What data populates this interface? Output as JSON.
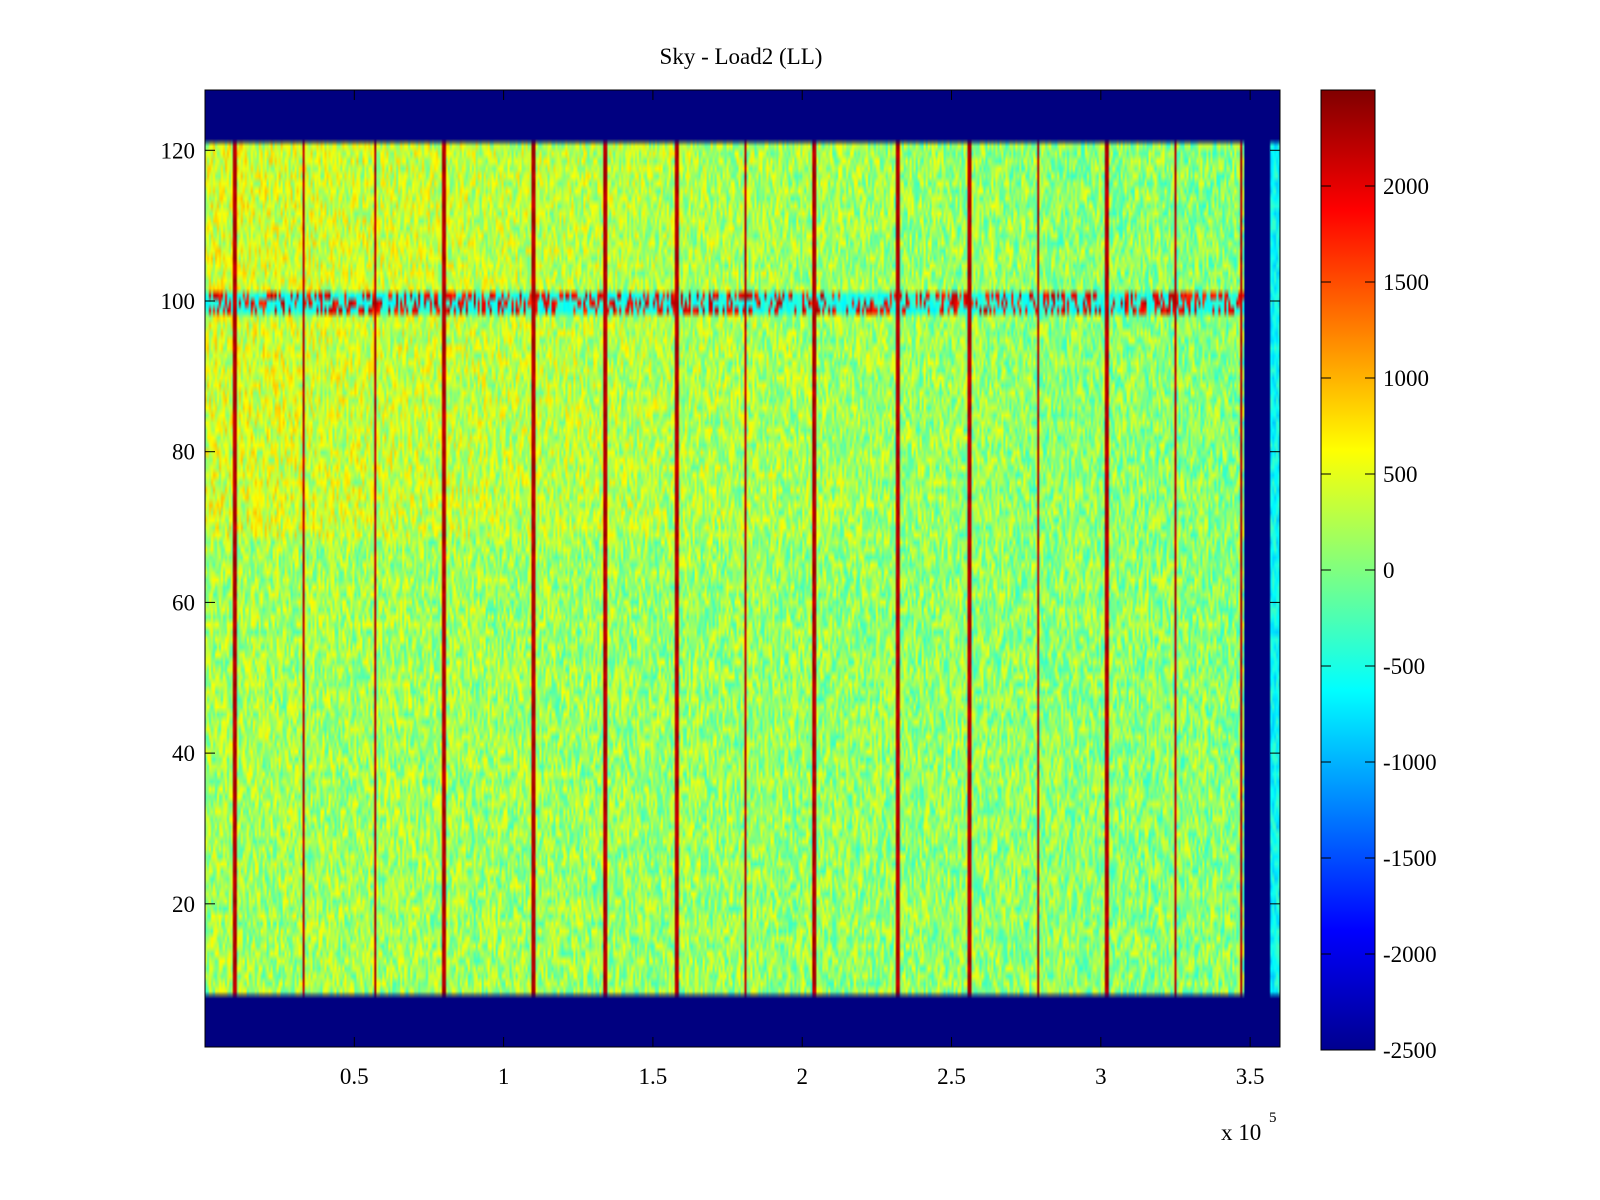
{
  "chart_data": {
    "type": "heatmap",
    "title": "Sky - Load2 (LL)",
    "xlabel": "",
    "ylabel": "",
    "x_multiplier_label": "x 10",
    "x_multiplier_exponent": "5",
    "xlim": [
      0,
      360000
    ],
    "ylim": [
      1,
      128
    ],
    "x_ticks": [
      {
        "value": 50000,
        "label": "0.5"
      },
      {
        "value": 100000,
        "label": "1"
      },
      {
        "value": 150000,
        "label": "1.5"
      },
      {
        "value": 200000,
        "label": "2"
      },
      {
        "value": 250000,
        "label": "2.5"
      },
      {
        "value": 300000,
        "label": "3"
      },
      {
        "value": 350000,
        "label": "3.5"
      }
    ],
    "y_ticks": [
      {
        "value": 20,
        "label": "20"
      },
      {
        "value": 40,
        "label": "40"
      },
      {
        "value": 60,
        "label": "60"
      },
      {
        "value": 80,
        "label": "80"
      },
      {
        "value": 100,
        "label": "100"
      },
      {
        "value": 120,
        "label": "120"
      }
    ],
    "colorbar": {
      "colormap": "jet",
      "clim": [
        -2500,
        2500
      ],
      "ticks": [
        {
          "value": 2000,
          "label": "2000"
        },
        {
          "value": 1500,
          "label": "1500"
        },
        {
          "value": 1000,
          "label": "1000"
        },
        {
          "value": 500,
          "label": "500"
        },
        {
          "value": 0,
          "label": "0"
        },
        {
          "value": -500,
          "label": "-500"
        },
        {
          "value": -1000,
          "label": "-1000"
        },
        {
          "value": -1500,
          "label": "-1500"
        },
        {
          "value": -2000,
          "label": "-2000"
        },
        {
          "value": -2500,
          "label": "-2500"
        }
      ]
    },
    "background_value": -2500,
    "data_row_bands": [
      [
        8,
        68
      ],
      [
        69,
        121
      ]
    ],
    "data_end_x": 348000,
    "gap_start_x": 349000,
    "gap_end_x": 357000,
    "base_value": 150,
    "top_band_extra": 250,
    "noise_amplitude": 500,
    "spike_x": [
      10000,
      33000,
      57000,
      80000,
      110000,
      134000,
      158000,
      181000,
      204000,
      232000,
      256000,
      279000,
      302000,
      325000,
      347000
    ],
    "spike_value": 2400,
    "hot_row": 100,
    "hot_row_value": 1600,
    "grid": false
  }
}
